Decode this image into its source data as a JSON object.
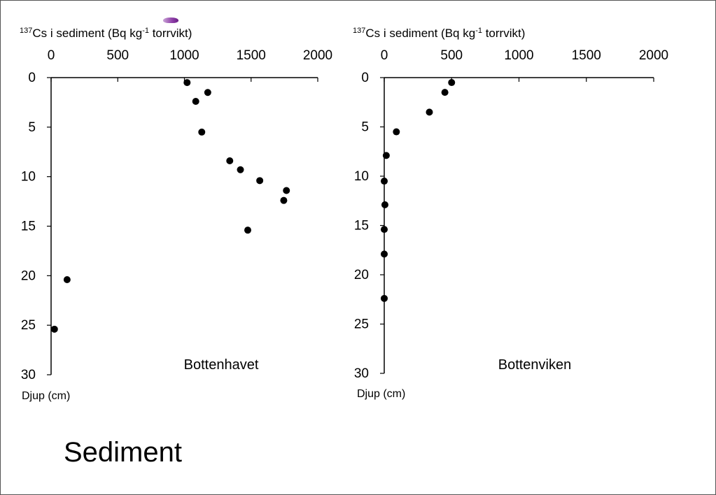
{
  "page": {
    "title": "Sediment",
    "accent_color": "#8e3fa8"
  },
  "chart_data": [
    {
      "type": "scatter",
      "name": "Bottenhavet",
      "title_prefix_sup": "137",
      "title_main": "Cs i sediment (Bq kg",
      "title_unit_sup": "-1",
      "title_suffix": " torrvikt)",
      "xlabel": "",
      "ylabel": "Djup (cm)",
      "xlim": [
        0,
        2000
      ],
      "ylim": [
        0,
        30
      ],
      "y_inverted": true,
      "x_axis_position": "top",
      "x_ticks": [
        0,
        500,
        1000,
        1500,
        2000
      ],
      "y_ticks": [
        0,
        5,
        10,
        15,
        20,
        25,
        30
      ],
      "points": [
        {
          "x": 1020,
          "y": 0.5
        },
        {
          "x": 1175,
          "y": 1.5
        },
        {
          "x": 1085,
          "y": 2.4
        },
        {
          "x": 1130,
          "y": 5.5
        },
        {
          "x": 1340,
          "y": 8.4
        },
        {
          "x": 1420,
          "y": 9.3
        },
        {
          "x": 1565,
          "y": 10.4
        },
        {
          "x": 1765,
          "y": 11.4
        },
        {
          "x": 1745,
          "y": 12.4
        },
        {
          "x": 1475,
          "y": 15.4
        },
        {
          "x": 120,
          "y": 20.4
        },
        {
          "x": 25,
          "y": 25.4
        }
      ],
      "marker_color": "#000000"
    },
    {
      "type": "scatter",
      "name": "Bottenviken",
      "title_prefix_sup": "137",
      "title_main": "Cs i sediment (Bq kg",
      "title_unit_sup": "-1",
      "title_suffix": " torrvikt)",
      "xlabel": "",
      "ylabel": "Djup (cm)",
      "xlim": [
        0,
        2000
      ],
      "ylim": [
        0,
        30
      ],
      "y_inverted": true,
      "x_axis_position": "top",
      "x_ticks": [
        0,
        500,
        1000,
        1500,
        2000
      ],
      "y_ticks": [
        0,
        5,
        10,
        15,
        20,
        25,
        30
      ],
      "points": [
        {
          "x": 500,
          "y": 0.5
        },
        {
          "x": 450,
          "y": 1.5
        },
        {
          "x": 335,
          "y": 3.5
        },
        {
          "x": 90,
          "y": 5.5
        },
        {
          "x": 15,
          "y": 7.9
        },
        {
          "x": 0,
          "y": 10.5
        },
        {
          "x": 5,
          "y": 12.9
        },
        {
          "x": 0,
          "y": 15.4
        },
        {
          "x": 0,
          "y": 17.9
        },
        {
          "x": 0,
          "y": 22.4
        }
      ],
      "marker_color": "#000000"
    }
  ]
}
